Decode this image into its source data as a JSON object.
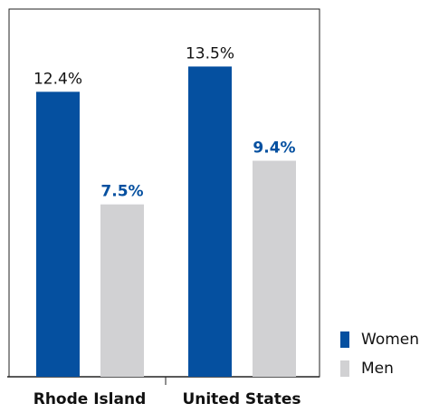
{
  "chart_data": {
    "type": "bar",
    "categories": [
      "Rhode Island",
      "United States"
    ],
    "series": [
      {
        "name": "Women",
        "color": "#0550a0",
        "values": [
          12.4,
          13.5
        ],
        "value_labels": [
          "12.4%",
          "13.5%"
        ],
        "label_color": "#111111",
        "label_bold": false
      },
      {
        "name": "Men",
        "color": "#d1d1d3",
        "values": [
          7.5,
          9.4
        ],
        "value_labels": [
          "7.5%",
          "9.4%"
        ],
        "label_color": "#0550a0",
        "label_bold": true
      }
    ],
    "ylim": [
      0,
      16
    ]
  }
}
